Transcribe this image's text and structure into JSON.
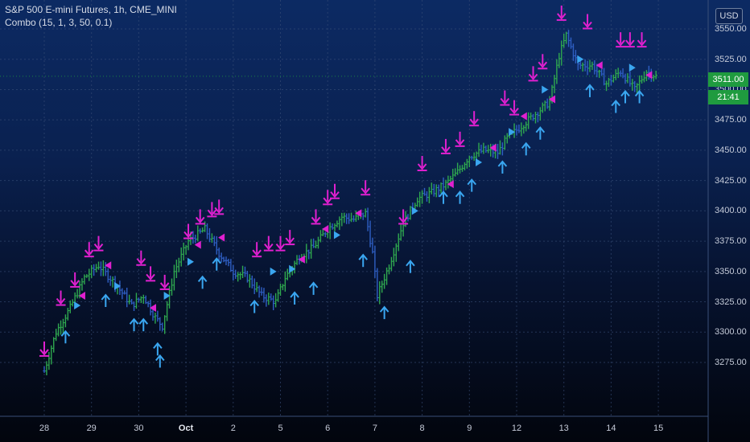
{
  "header": {
    "symbol_line": "S&P 500 E-mini Futures, 1h, CME_MINI",
    "indicator_line": "Combo (15, 1, 3, 50, 0.1)"
  },
  "price_scale": {
    "currency": "USD",
    "last_price": "3511.00",
    "countdown": "21:41"
  },
  "colors": {
    "bar_up": "#2fa84f",
    "bar_down": "#2f5fc4",
    "sell_arrow": "#e020d0",
    "buy_arrow": "#3aa6f0",
    "grid": "#3a4f78",
    "last_price": "#1f9b3f"
  },
  "chart_data": {
    "type": "ohlc",
    "title": "S&P 500 E-mini Futures, 1h, CME_MINI",
    "ylim": [
      3260,
      3560
    ],
    "y_ticks": [
      3275,
      3300,
      3325,
      3350,
      3375,
      3400,
      3425,
      3450,
      3475,
      3500,
      3525,
      3550
    ],
    "y_tick_labels": [
      {
        "value": 3275,
        "label": "3275.00"
      },
      {
        "value": 3300,
        "label": "3300.00"
      },
      {
        "value": 3325,
        "label": "3325.00"
      },
      {
        "value": 3350,
        "label": "3350.00"
      },
      {
        "value": 3375,
        "label": "3375.00"
      },
      {
        "value": 3400,
        "label": "3400.00"
      },
      {
        "value": 3425,
        "label": "3425.00"
      },
      {
        "value": 3450,
        "label": "3450.00"
      },
      {
        "value": 3475,
        "label": "3475.00"
      },
      {
        "value": 3500,
        "label": "3500.00"
      },
      {
        "value": 3525,
        "label": "3525.00"
      },
      {
        "value": 3550,
        "label": "3550.00"
      }
    ],
    "x_ticks": [
      {
        "label": "28",
        "bold": false
      },
      {
        "label": "29",
        "bold": false
      },
      {
        "label": "30",
        "bold": false
      },
      {
        "label": "Oct",
        "bold": true
      },
      {
        "label": "2",
        "bold": false
      },
      {
        "label": "5",
        "bold": false
      },
      {
        "label": "6",
        "bold": false
      },
      {
        "label": "7",
        "bold": false
      },
      {
        "label": "8",
        "bold": false
      },
      {
        "label": "9",
        "bold": false
      },
      {
        "label": "12",
        "bold": false
      },
      {
        "label": "13",
        "bold": false
      },
      {
        "label": "14",
        "bold": false
      },
      {
        "label": "15",
        "bold": false
      }
    ],
    "last_price": 3511,
    "price_path": [
      [
        0,
        3268
      ],
      [
        0.25,
        3300
      ],
      [
        0.55,
        3320
      ],
      [
        0.85,
        3345
      ],
      [
        1.15,
        3355
      ],
      [
        1.5,
        3340
      ],
      [
        1.85,
        3322
      ],
      [
        2.1,
        3330
      ],
      [
        2.35,
        3312
      ],
      [
        2.5,
        3305
      ],
      [
        2.75,
        3350
      ],
      [
        3.05,
        3375
      ],
      [
        3.4,
        3385
      ],
      [
        3.7,
        3365
      ],
      [
        4.0,
        3350
      ],
      [
        4.3,
        3345
      ],
      [
        4.6,
        3330
      ],
      [
        4.9,
        3325
      ],
      [
        5.1,
        3345
      ],
      [
        5.4,
        3362
      ],
      [
        5.7,
        3370
      ],
      [
        6.0,
        3385
      ],
      [
        6.3,
        3395
      ],
      [
        6.55,
        3393
      ],
      [
        6.8,
        3398
      ],
      [
        6.95,
        3365
      ],
      [
        7.05,
        3330
      ],
      [
        7.3,
        3355
      ],
      [
        7.6,
        3390
      ],
      [
        7.9,
        3410
      ],
      [
        8.2,
        3415
      ],
      [
        8.5,
        3422
      ],
      [
        8.75,
        3432
      ],
      [
        9.0,
        3445
      ],
      [
        9.3,
        3450
      ],
      [
        9.6,
        3448
      ],
      [
        9.8,
        3460
      ],
      [
        10.1,
        3470
      ],
      [
        10.4,
        3480
      ],
      [
        10.7,
        3490
      ],
      [
        10.9,
        3528
      ],
      [
        11.05,
        3545
      ],
      [
        11.3,
        3520
      ],
      [
        11.6,
        3520
      ],
      [
        11.9,
        3505
      ],
      [
        12.2,
        3515
      ],
      [
        12.5,
        3500
      ],
      [
        12.75,
        3515
      ],
      [
        12.95,
        3511
      ]
    ],
    "sell_signals": [
      {
        "x": 0.0,
        "y": 3283
      },
      {
        "x": 0.35,
        "y": 3325
      },
      {
        "x": 0.65,
        "y": 3340
      },
      {
        "x": 0.95,
        "y": 3365
      },
      {
        "x": 1.15,
        "y": 3370
      },
      {
        "x": 2.05,
        "y": 3358
      },
      {
        "x": 2.25,
        "y": 3345
      },
      {
        "x": 2.55,
        "y": 3338
      },
      {
        "x": 3.05,
        "y": 3380
      },
      {
        "x": 3.3,
        "y": 3392
      },
      {
        "x": 3.55,
        "y": 3398
      },
      {
        "x": 3.7,
        "y": 3400
      },
      {
        "x": 4.5,
        "y": 3365
      },
      {
        "x": 4.75,
        "y": 3370
      },
      {
        "x": 5.0,
        "y": 3370
      },
      {
        "x": 5.2,
        "y": 3375
      },
      {
        "x": 5.75,
        "y": 3392
      },
      {
        "x": 6.0,
        "y": 3408
      },
      {
        "x": 6.15,
        "y": 3413
      },
      {
        "x": 6.8,
        "y": 3416
      },
      {
        "x": 7.6,
        "y": 3392
      },
      {
        "x": 8.0,
        "y": 3436
      },
      {
        "x": 8.5,
        "y": 3450
      },
      {
        "x": 8.8,
        "y": 3456
      },
      {
        "x": 9.1,
        "y": 3473
      },
      {
        "x": 9.75,
        "y": 3490
      },
      {
        "x": 9.95,
        "y": 3482
      },
      {
        "x": 10.35,
        "y": 3510
      },
      {
        "x": 10.55,
        "y": 3520
      },
      {
        "x": 10.95,
        "y": 3560
      },
      {
        "x": 11.5,
        "y": 3553
      },
      {
        "x": 12.2,
        "y": 3538
      },
      {
        "x": 12.4,
        "y": 3538
      },
      {
        "x": 12.65,
        "y": 3538
      }
    ],
    "buy_signals": [
      {
        "x": 0.45,
        "y": 3300
      },
      {
        "x": 1.3,
        "y": 3330
      },
      {
        "x": 1.9,
        "y": 3310
      },
      {
        "x": 2.1,
        "y": 3310
      },
      {
        "x": 2.4,
        "y": 3290
      },
      {
        "x": 2.45,
        "y": 3280
      },
      {
        "x": 3.35,
        "y": 3345
      },
      {
        "x": 3.65,
        "y": 3360
      },
      {
        "x": 4.45,
        "y": 3325
      },
      {
        "x": 5.3,
        "y": 3332
      },
      {
        "x": 5.7,
        "y": 3340
      },
      {
        "x": 6.75,
        "y": 3363
      },
      {
        "x": 7.2,
        "y": 3320
      },
      {
        "x": 7.75,
        "y": 3358
      },
      {
        "x": 8.45,
        "y": 3415
      },
      {
        "x": 8.8,
        "y": 3415
      },
      {
        "x": 9.05,
        "y": 3425
      },
      {
        "x": 9.7,
        "y": 3440
      },
      {
        "x": 10.2,
        "y": 3455
      },
      {
        "x": 10.5,
        "y": 3468
      },
      {
        "x": 11.55,
        "y": 3503
      },
      {
        "x": 12.1,
        "y": 3490
      },
      {
        "x": 12.3,
        "y": 3498
      },
      {
        "x": 12.6,
        "y": 3498
      }
    ],
    "sell_markers": [
      {
        "x": 0.8,
        "y": 3330
      },
      {
        "x": 1.35,
        "y": 3355
      },
      {
        "x": 2.3,
        "y": 3320
      },
      {
        "x": 3.25,
        "y": 3372
      },
      {
        "x": 3.75,
        "y": 3378
      },
      {
        "x": 5.45,
        "y": 3360
      },
      {
        "x": 5.95,
        "y": 3385
      },
      {
        "x": 6.65,
        "y": 3398
      },
      {
        "x": 8.6,
        "y": 3422
      },
      {
        "x": 9.5,
        "y": 3452
      },
      {
        "x": 10.15,
        "y": 3478
      },
      {
        "x": 10.75,
        "y": 3492
      },
      {
        "x": 11.75,
        "y": 3520
      },
      {
        "x": 12.8,
        "y": 3512
      }
    ],
    "buy_markers": [
      {
        "x": 0.7,
        "y": 3322
      },
      {
        "x": 1.55,
        "y": 3338
      },
      {
        "x": 2.6,
        "y": 3330
      },
      {
        "x": 3.1,
        "y": 3358
      },
      {
        "x": 4.85,
        "y": 3350
      },
      {
        "x": 5.25,
        "y": 3352
      },
      {
        "x": 6.2,
        "y": 3380
      },
      {
        "x": 7.85,
        "y": 3400
      },
      {
        "x": 9.2,
        "y": 3440
      },
      {
        "x": 9.9,
        "y": 3465
      },
      {
        "x": 10.6,
        "y": 3500
      },
      {
        "x": 11.35,
        "y": 3525
      },
      {
        "x": 12.45,
        "y": 3518
      }
    ]
  }
}
